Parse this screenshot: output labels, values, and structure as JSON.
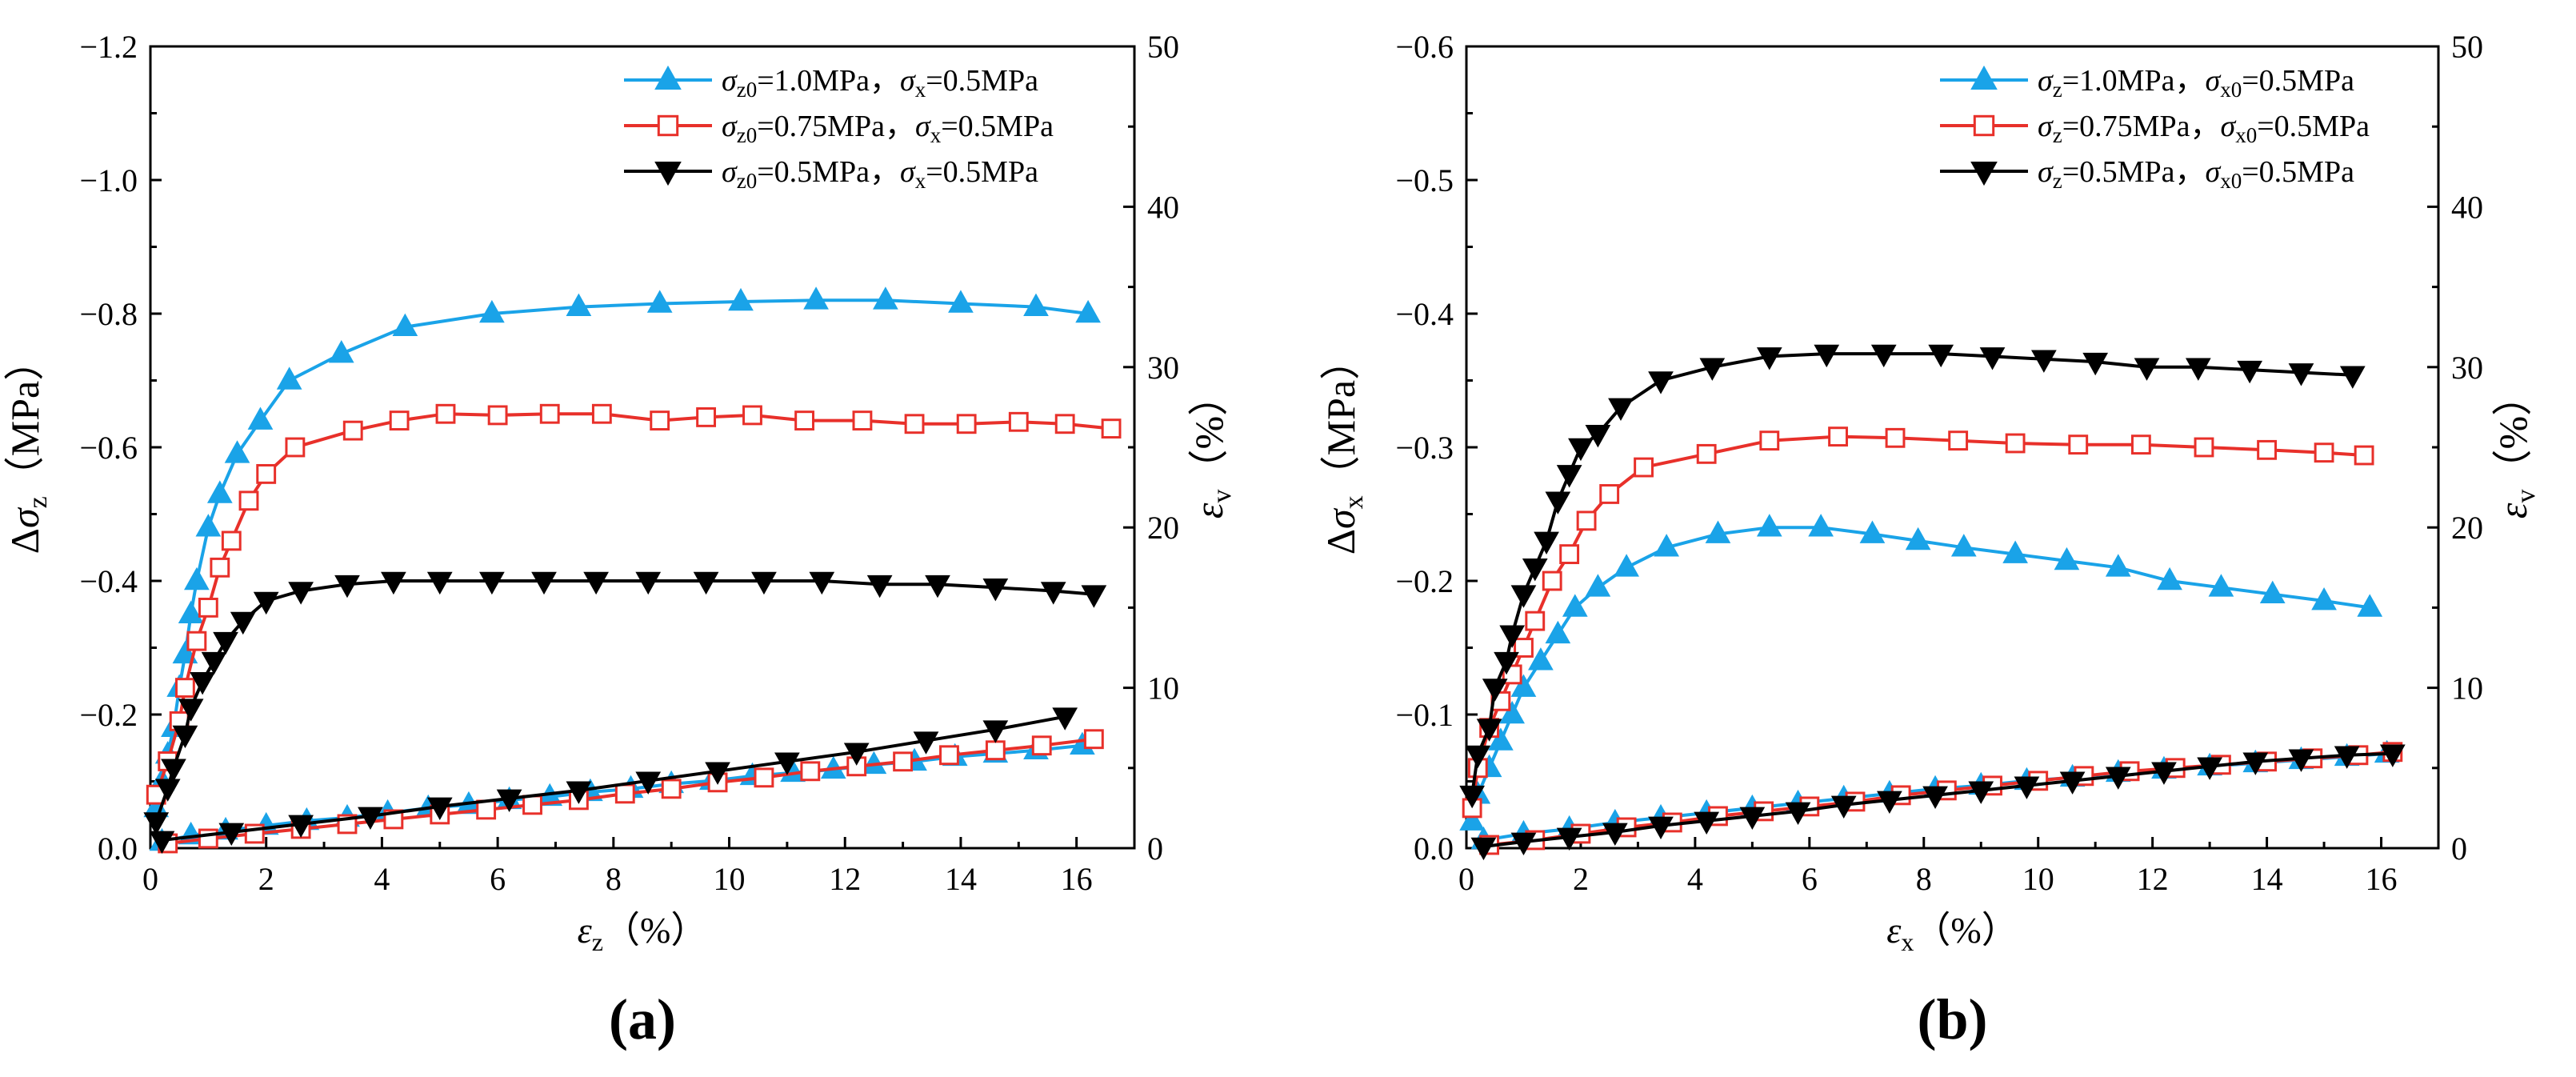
{
  "chart_data": [
    {
      "type": "line",
      "panel_label": "(a)",
      "xlabel": {
        "sym": "ε",
        "sub": "z",
        "rest": "（%）"
      },
      "ylabel": {
        "pre": "Δ",
        "sym": "σ",
        "sub": "z",
        "rest": "（MPa）"
      },
      "y2label": {
        "sym": "ε",
        "sub": "v",
        "rest": "（%）"
      },
      "xlim": [
        0,
        17
      ],
      "x_ticks": [
        0,
        2,
        4,
        6,
        8,
        10,
        12,
        14,
        16
      ],
      "x_tick_labels": [
        "0",
        "2",
        "4",
        "6",
        "8",
        "10",
        "12",
        "14",
        "16"
      ],
      "ylim": [
        0,
        -1.2
      ],
      "y_ticks": [
        0,
        -0.2,
        -0.4,
        -0.6,
        -0.8,
        -1.0,
        -1.2
      ],
      "y_tick_labels": [
        "0.0",
        "−0.2",
        "−0.4",
        "−0.6",
        "−0.8",
        "−1.0",
        "−1.2"
      ],
      "y2lim": [
        0,
        50
      ],
      "y2_ticks": [
        0,
        10,
        20,
        30,
        40,
        50
      ],
      "y2_tick_labels": [
        "0",
        "10",
        "20",
        "30",
        "40",
        "50"
      ],
      "legend_position": "top-right",
      "series": [
        {
          "legend": {
            "s1": "z0",
            "v1": "=1.0MPa，",
            "s2": "x",
            "v2": "=0.5MPa"
          },
          "color": "#1AA3E8",
          "marker": "triangle-up",
          "filled": true,
          "axis": "left",
          "x": [
            0.1,
            0.2,
            0.3,
            0.4,
            0.5,
            0.6,
            0.7,
            0.8,
            1.0,
            1.2,
            1.5,
            1.9,
            2.4,
            3.3,
            4.4,
            5.9,
            7.4,
            8.8,
            10.2,
            11.5,
            12.7,
            14.0,
            15.3,
            16.2
          ],
          "y": [
            -0.06,
            -0.1,
            -0.14,
            -0.18,
            -0.24,
            -0.29,
            -0.35,
            -0.4,
            -0.48,
            -0.53,
            -0.59,
            -0.64,
            -0.7,
            -0.74,
            -0.78,
            -0.8,
            -0.81,
            -0.815,
            -0.818,
            -0.82,
            -0.82,
            -0.815,
            -0.81,
            -0.8
          ]
        },
        {
          "legend": {
            "s1": "z0",
            "v1": "=0.75MPa，",
            "s2": "x",
            "v2": "=0.5MPa"
          },
          "color": "#E8302A",
          "marker": "square",
          "filled": false,
          "axis": "left",
          "x": [
            0.1,
            0.3,
            0.5,
            0.6,
            0.8,
            1.0,
            1.2,
            1.4,
            1.7,
            2.0,
            2.5,
            3.5,
            4.3,
            5.1,
            6.0,
            6.9,
            7.8,
            8.8,
            9.6,
            10.4,
            11.3,
            12.3,
            13.2,
            14.1,
            15.0,
            15.8,
            16.6
          ],
          "y": [
            -0.08,
            -0.13,
            -0.19,
            -0.24,
            -0.31,
            -0.36,
            -0.42,
            -0.46,
            -0.52,
            -0.56,
            -0.6,
            -0.625,
            -0.64,
            -0.65,
            -0.648,
            -0.65,
            -0.65,
            -0.64,
            -0.645,
            -0.648,
            -0.64,
            -0.64,
            -0.635,
            -0.635,
            -0.638,
            -0.635,
            -0.628
          ]
        },
        {
          "legend": {
            "s1": "z0",
            "v1": "=0.5MPa，",
            "s2": "x",
            "v2": "=0.5MPa"
          },
          "color": "#000000",
          "marker": "triangle-down",
          "filled": true,
          "axis": "left",
          "x": [
            0.1,
            0.3,
            0.4,
            0.6,
            0.7,
            0.9,
            1.1,
            1.3,
            1.6,
            2.0,
            2.6,
            3.4,
            4.2,
            5.0,
            5.9,
            6.8,
            7.7,
            8.6,
            9.6,
            10.6,
            11.6,
            12.6,
            13.6,
            14.6,
            15.6,
            16.3
          ],
          "y": [
            -0.04,
            -0.09,
            -0.12,
            -0.17,
            -0.21,
            -0.25,
            -0.28,
            -0.31,
            -0.34,
            -0.37,
            -0.385,
            -0.395,
            -0.4,
            -0.4,
            -0.4,
            -0.4,
            -0.4,
            -0.4,
            -0.4,
            -0.4,
            -0.4,
            -0.395,
            -0.395,
            -0.39,
            -0.385,
            -0.38
          ]
        },
        {
          "color": "#1AA3E8",
          "marker": "triangle-up",
          "filled": true,
          "axis": "right",
          "x": [
            0.2,
            0.7,
            1.3,
            2.0,
            2.7,
            3.4,
            4.1,
            4.8,
            5.5,
            6.2,
            6.9,
            7.6,
            8.3,
            9.0,
            9.7,
            10.4,
            11.1,
            11.8,
            12.5,
            13.2,
            13.9,
            14.6,
            15.3,
            16.1
          ],
          "y": [
            0.4,
            0.8,
            1.1,
            1.4,
            1.7,
            1.9,
            2.2,
            2.5,
            2.7,
            3.0,
            3.2,
            3.5,
            3.7,
            4.0,
            4.2,
            4.5,
            4.7,
            4.9,
            5.2,
            5.4,
            5.7,
            5.9,
            6.1,
            6.4
          ]
        },
        {
          "color": "#E8302A",
          "marker": "square",
          "filled": false,
          "axis": "right",
          "x": [
            0.3,
            1.0,
            1.8,
            2.6,
            3.4,
            4.2,
            5.0,
            5.8,
            6.6,
            7.4,
            8.2,
            9.0,
            9.8,
            10.6,
            11.4,
            12.2,
            13.0,
            13.8,
            14.6,
            15.4,
            16.3
          ],
          "y": [
            0.3,
            0.6,
            0.9,
            1.2,
            1.5,
            1.8,
            2.1,
            2.4,
            2.7,
            3.0,
            3.4,
            3.7,
            4.1,
            4.4,
            4.8,
            5.1,
            5.4,
            5.8,
            6.1,
            6.4,
            6.8
          ]
        },
        {
          "color": "#000000",
          "marker": "triangle-down",
          "filled": true,
          "axis": "right",
          "x": [
            0.2,
            1.4,
            2.6,
            3.8,
            5.0,
            6.2,
            7.4,
            8.6,
            9.8,
            11.0,
            12.2,
            13.4,
            14.6,
            15.8
          ],
          "y": [
            0.5,
            1.0,
            1.5,
            2.0,
            2.6,
            3.1,
            3.6,
            4.2,
            4.8,
            5.4,
            6.0,
            6.7,
            7.4,
            8.2
          ]
        }
      ]
    },
    {
      "type": "line",
      "panel_label": "(b)",
      "xlabel": {
        "sym": "ε",
        "sub": "x",
        "rest": "（%）"
      },
      "ylabel": {
        "pre": "Δ",
        "sym": "σ",
        "sub": "x",
        "rest": "（MPa）"
      },
      "y2label": {
        "sym": "ε",
        "sub": "v",
        "rest": "（%）"
      },
      "xlim": [
        0,
        17
      ],
      "x_ticks": [
        0,
        2,
        4,
        6,
        8,
        10,
        12,
        14,
        16
      ],
      "x_tick_labels": [
        "0",
        "2",
        "4",
        "6",
        "8",
        "10",
        "12",
        "14",
        "16"
      ],
      "ylim": [
        0,
        -0.6
      ],
      "y_ticks": [
        0,
        -0.1,
        -0.2,
        -0.3,
        -0.4,
        -0.5,
        -0.6
      ],
      "y_tick_labels": [
        "0.0",
        "−0.1",
        "−0.2",
        "−0.3",
        "−0.4",
        "−0.5",
        "−0.6"
      ],
      "y2lim": [
        0,
        50
      ],
      "y2_ticks": [
        0,
        10,
        20,
        30,
        40,
        50
      ],
      "y2_tick_labels": [
        "0",
        "10",
        "20",
        "30",
        "40",
        "50"
      ],
      "legend_position": "top-right",
      "series": [
        {
          "legend": {
            "s1": "z",
            "v1": "=1.0MPa，",
            "s2": "x0",
            "v2": "=0.5MPa"
          },
          "color": "#1AA3E8",
          "marker": "triangle-up",
          "filled": true,
          "axis": "left",
          "x": [
            0.1,
            0.2,
            0.4,
            0.6,
            0.8,
            1.0,
            1.3,
            1.6,
            1.9,
            2.3,
            2.8,
            3.5,
            4.4,
            5.3,
            6.2,
            7.1,
            7.9,
            8.7,
            9.6,
            10.5,
            11.4,
            12.3,
            13.2,
            14.1,
            15.0,
            15.8
          ],
          "y": [
            -0.02,
            -0.04,
            -0.06,
            -0.08,
            -0.1,
            -0.12,
            -0.14,
            -0.16,
            -0.18,
            -0.195,
            -0.21,
            -0.225,
            -0.235,
            -0.24,
            -0.24,
            -0.235,
            -0.23,
            -0.225,
            -0.22,
            -0.215,
            -0.21,
            -0.2,
            -0.195,
            -0.19,
            -0.185,
            -0.18
          ]
        },
        {
          "legend": {
            "s1": "z",
            "v1": "=0.75MPa，",
            "s2": "x0",
            "v2": "=0.5MPa"
          },
          "color": "#E8302A",
          "marker": "square",
          "filled": false,
          "axis": "left",
          "x": [
            0.1,
            0.2,
            0.4,
            0.6,
            0.8,
            1.0,
            1.2,
            1.5,
            1.8,
            2.1,
            2.5,
            3.1,
            4.2,
            5.3,
            6.5,
            7.5,
            8.6,
            9.6,
            10.7,
            11.8,
            12.9,
            14.0,
            15.0,
            15.7
          ],
          "y": [
            -0.03,
            -0.06,
            -0.09,
            -0.11,
            -0.13,
            -0.15,
            -0.17,
            -0.2,
            -0.22,
            -0.245,
            -0.265,
            -0.285,
            -0.295,
            -0.305,
            -0.308,
            -0.307,
            -0.305,
            -0.303,
            -0.302,
            -0.302,
            -0.3,
            -0.298,
            -0.296,
            -0.294
          ]
        },
        {
          "legend": {
            "s1": "z",
            "v1": "=0.5MPa，",
            "s2": "x0",
            "v2": "=0.5MPa"
          },
          "color": "#000000",
          "marker": "triangle-down",
          "filled": true,
          "axis": "left",
          "x": [
            0.1,
            0.2,
            0.4,
            0.5,
            0.7,
            0.8,
            1.0,
            1.2,
            1.4,
            1.6,
            1.8,
            2.0,
            2.3,
            2.7,
            3.4,
            4.3,
            5.3,
            6.3,
            7.3,
            8.3,
            9.2,
            10.1,
            11.0,
            11.9,
            12.8,
            13.7,
            14.6,
            15.5
          ],
          "y": [
            -0.04,
            -0.07,
            -0.09,
            -0.12,
            -0.14,
            -0.16,
            -0.19,
            -0.21,
            -0.23,
            -0.26,
            -0.28,
            -0.3,
            -0.31,
            -0.33,
            -0.35,
            -0.36,
            -0.368,
            -0.37,
            -0.37,
            -0.37,
            -0.368,
            -0.366,
            -0.364,
            -0.36,
            -0.36,
            -0.358,
            -0.356,
            -0.354
          ]
        },
        {
          "color": "#1AA3E8",
          "marker": "triangle-up",
          "filled": true,
          "axis": "right",
          "x": [
            0.3,
            1.0,
            1.8,
            2.6,
            3.4,
            4.2,
            5.0,
            5.8,
            6.6,
            7.4,
            8.2,
            9.0,
            9.8,
            10.6,
            11.4,
            12.2,
            13.0,
            13.8,
            14.6,
            15.4,
            16.1
          ],
          "y": [
            0.5,
            0.9,
            1.2,
            1.6,
            1.9,
            2.2,
            2.5,
            2.8,
            3.1,
            3.4,
            3.7,
            3.9,
            4.2,
            4.4,
            4.7,
            4.9,
            5.1,
            5.3,
            5.5,
            5.7,
            5.9
          ]
        },
        {
          "color": "#E8302A",
          "marker": "square",
          "filled": false,
          "axis": "right",
          "x": [
            0.4,
            1.2,
            2.0,
            2.8,
            3.6,
            4.4,
            5.2,
            6.0,
            6.8,
            7.6,
            8.4,
            9.2,
            10.0,
            10.8,
            11.6,
            12.4,
            13.2,
            14.0,
            14.8,
            15.6,
            16.2
          ],
          "y": [
            0.2,
            0.5,
            0.9,
            1.3,
            1.6,
            2.0,
            2.3,
            2.6,
            2.9,
            3.3,
            3.6,
            3.9,
            4.2,
            4.5,
            4.8,
            5.0,
            5.2,
            5.4,
            5.6,
            5.8,
            6.0
          ]
        },
        {
          "color": "#000000",
          "marker": "triangle-down",
          "filled": true,
          "axis": "right",
          "x": [
            0.3,
            1.0,
            1.8,
            2.6,
            3.4,
            4.2,
            5.0,
            5.8,
            6.6,
            7.4,
            8.2,
            9.0,
            9.8,
            10.6,
            11.4,
            12.2,
            13.0,
            13.8,
            14.6,
            15.4,
            16.2
          ],
          "y": [
            0.1,
            0.4,
            0.7,
            1.0,
            1.4,
            1.7,
            2.0,
            2.3,
            2.7,
            3.0,
            3.3,
            3.6,
            3.9,
            4.2,
            4.5,
            4.8,
            5.1,
            5.4,
            5.6,
            5.8,
            5.9
          ]
        }
      ]
    }
  ]
}
